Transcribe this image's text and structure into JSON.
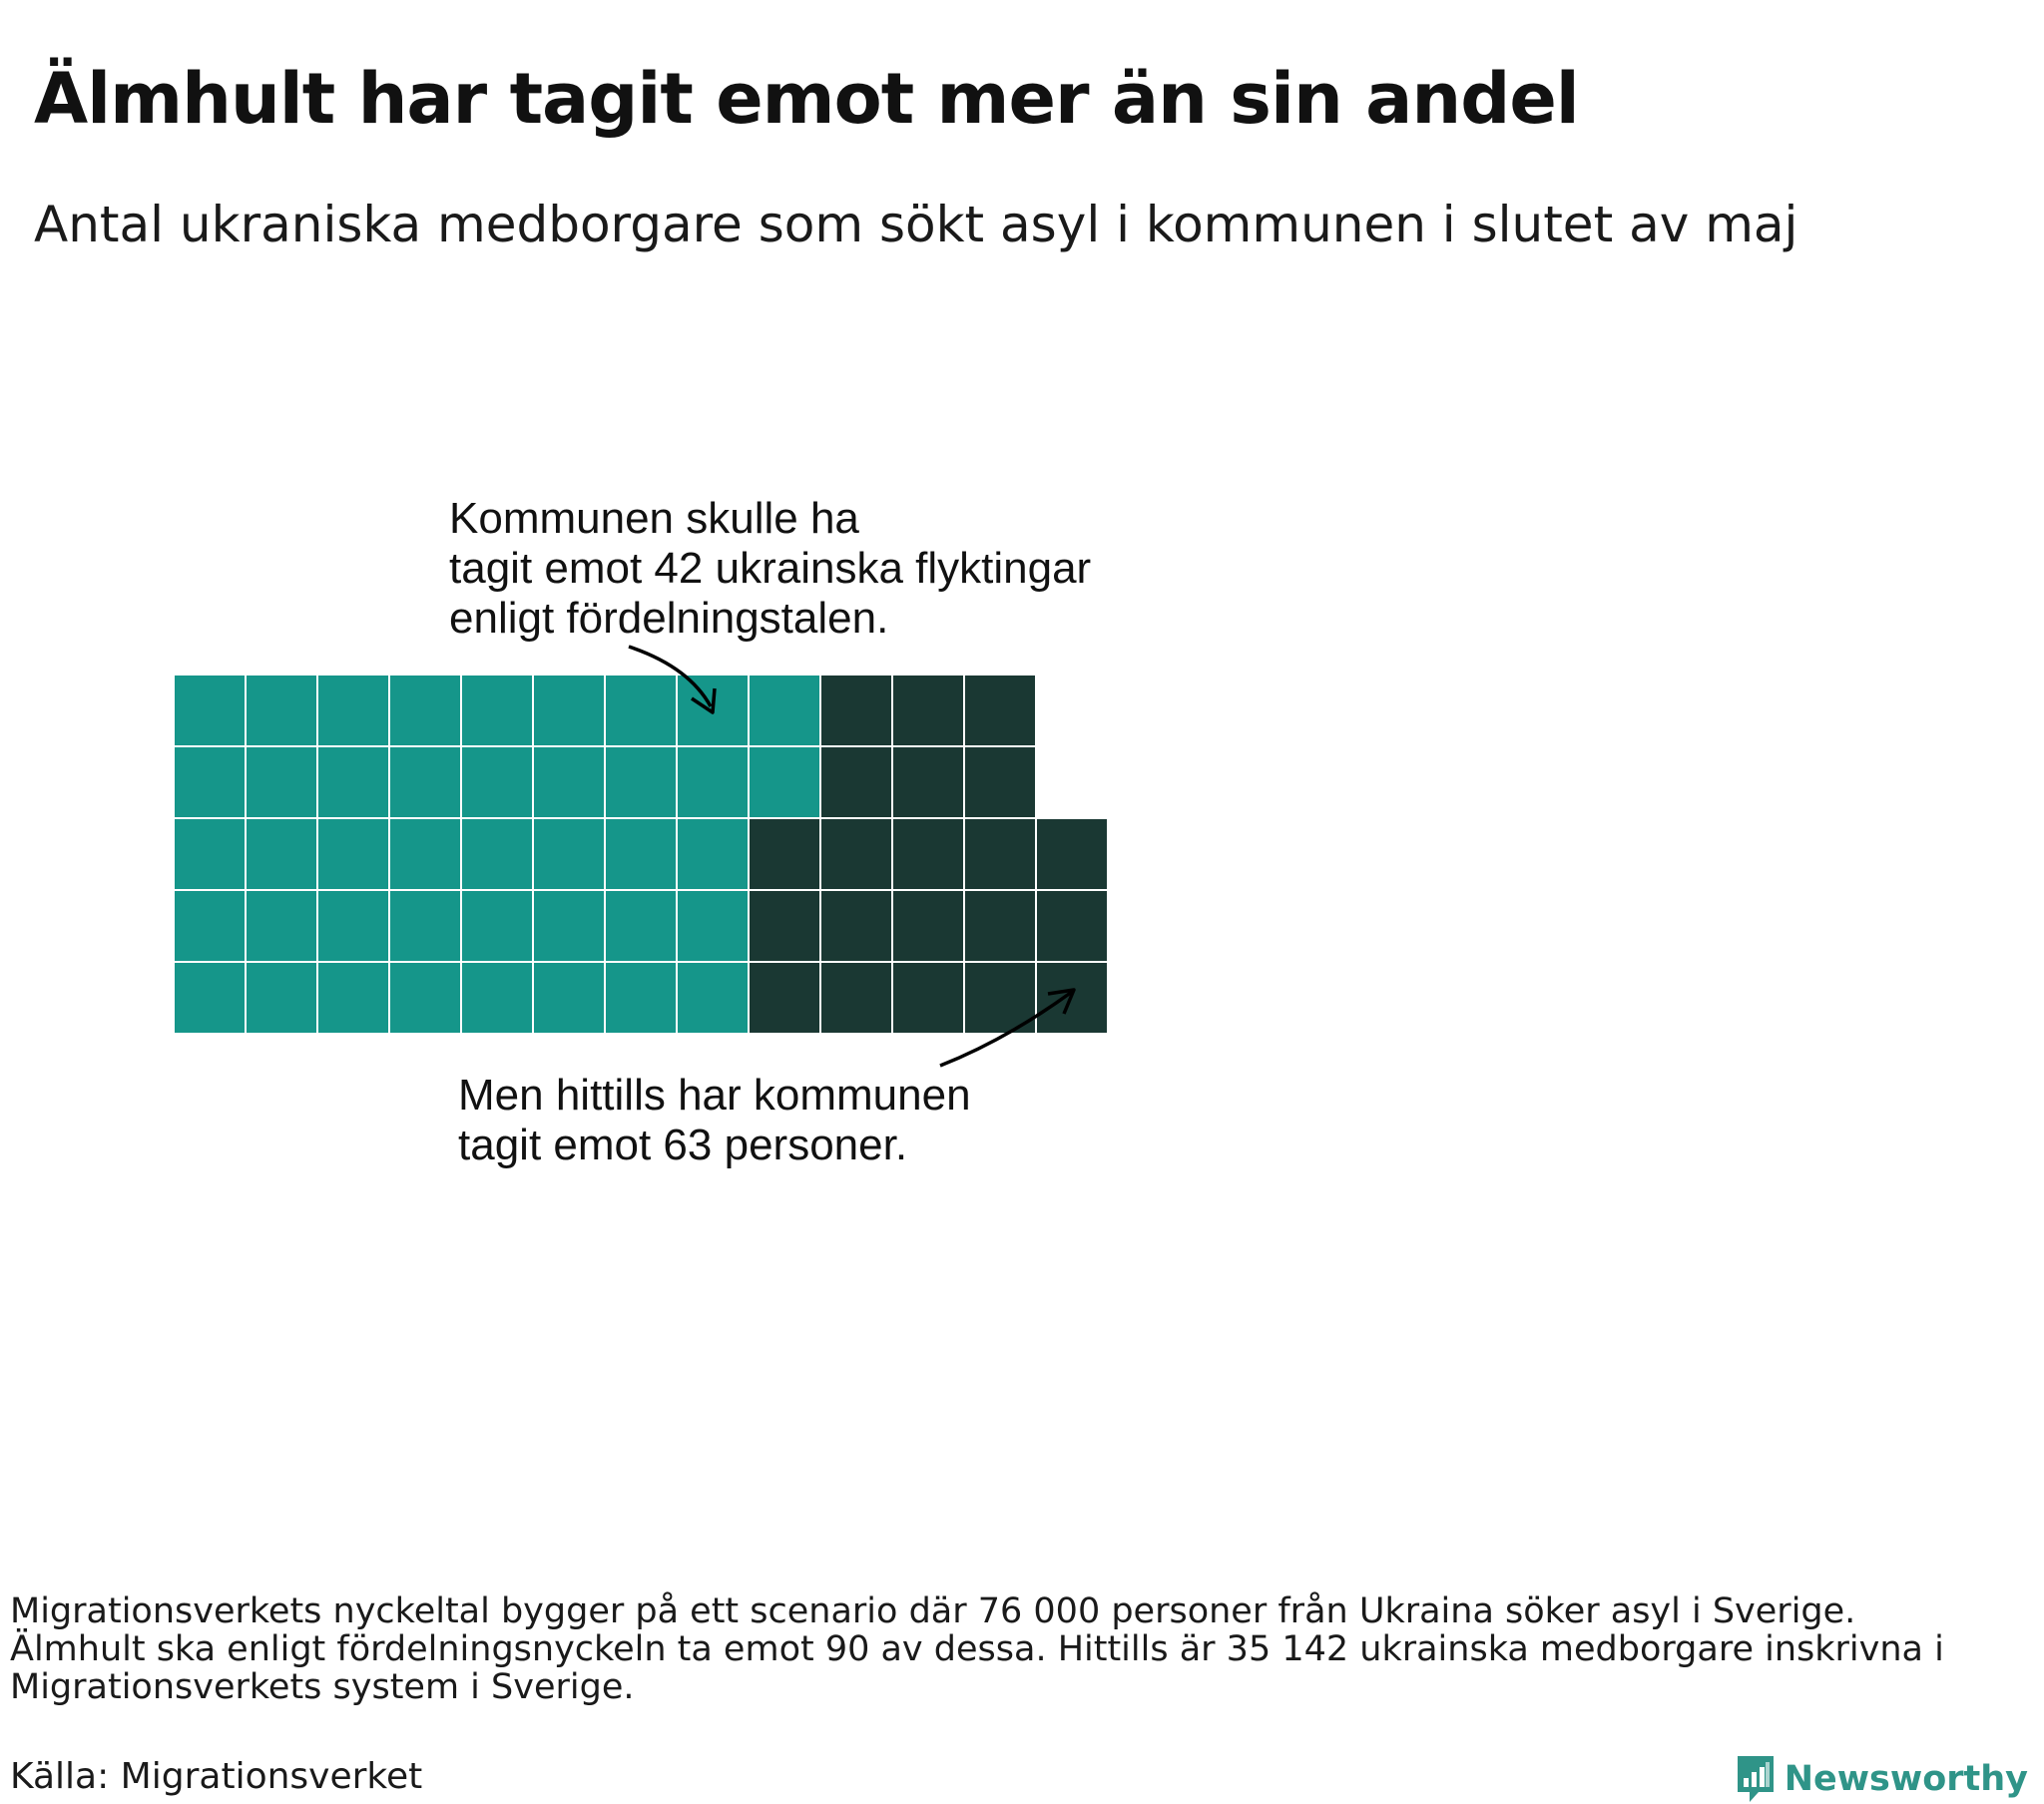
{
  "title": "Älmhult har tagit emot mer än sin andel",
  "subtitle": "Antal ukraniska medborgare som sökt asyl i kommunen i slutet av maj",
  "chart_data": {
    "type": "waffle",
    "unit": "person",
    "rows": 5,
    "series": [
      {
        "label": "Kommunen skulle ha tagit emot 42 ukrainska flyktingar enligt fördelningstalen.",
        "value": 42,
        "color": "#15968a"
      },
      {
        "label": "Men hittills har kommunen tagit emot 63 personer.",
        "value": 63,
        "color": "#1a3833"
      }
    ],
    "annotations": {
      "expected": [
        "Kommunen skulle ha",
        "tagit emot 42 ukrainska flyktingar",
        "enligt fördelningstalen."
      ],
      "actual": [
        "Men hittills har kommunen",
        "tagit emot 63 personer."
      ]
    }
  },
  "footnote": [
    "Migrationsverkets nyckeltal bygger på ett scenario där 76 000 personer från Ukraina söker asyl i Sverige.",
    "Älmhult ska enligt fördelningsnyckeln ta emot 90 av dessa. Hittills är 35 142 ukrainska medborgare inskrivna i",
    "Migrationsverkets system i Sverige."
  ],
  "source": "Källa: Migrationsverket",
  "brand": {
    "name": "Newsworthy",
    "icon": "newsworthy-logo-icon",
    "color": "#2f9488"
  }
}
